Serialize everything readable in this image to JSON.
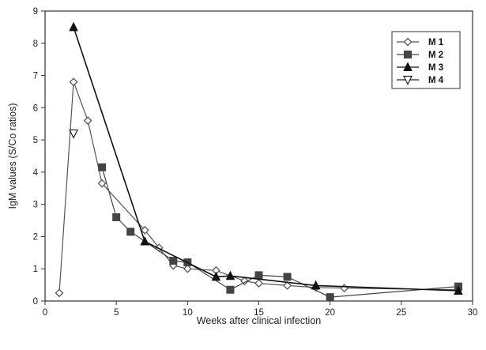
{
  "chart_data": {
    "type": "line",
    "xlabel": "Weeks after clinical infection",
    "ylabel": "IgM values (S/Co ratios)",
    "xlim": [
      0,
      30
    ],
    "ylim": [
      0,
      9
    ],
    "xticks": [
      "0",
      "5",
      "10",
      "15",
      "20",
      "25",
      "30"
    ],
    "yticks": [
      "0",
      "1",
      "2",
      "3",
      "4",
      "5",
      "6",
      "7",
      "8",
      "9"
    ],
    "grid": false,
    "legend_position": "top-right",
    "series": [
      {
        "name": "M 1",
        "marker": "diamond",
        "color": "#555555",
        "points": [
          [
            1,
            0.25
          ],
          [
            2,
            6.8
          ],
          [
            3,
            5.6
          ],
          [
            4,
            3.65
          ],
          [
            7,
            2.2
          ],
          [
            8,
            1.65
          ],
          [
            9,
            1.1
          ],
          [
            10,
            1.0
          ],
          [
            12,
            0.95
          ],
          [
            14,
            0.62
          ],
          [
            15,
            0.55
          ],
          [
            17,
            0.48
          ],
          [
            19,
            0.42
          ],
          [
            21,
            0.4
          ],
          [
            29,
            0.35
          ]
        ]
      },
      {
        "name": "M 2",
        "marker": "square",
        "color": "#444444",
        "points": [
          [
            4,
            4.15
          ],
          [
            5,
            2.6
          ],
          [
            6,
            2.15
          ],
          [
            9,
            1.25
          ],
          [
            10,
            1.2
          ],
          [
            13,
            0.35
          ],
          [
            15,
            0.8
          ],
          [
            17,
            0.75
          ],
          [
            20,
            0.12
          ],
          [
            29,
            0.45
          ]
        ]
      },
      {
        "name": "M 3",
        "marker": "triangle",
        "color": "#111111",
        "points": [
          [
            2,
            8.5
          ],
          [
            7,
            1.85
          ],
          [
            12,
            0.75
          ],
          [
            13,
            0.78
          ],
          [
            19,
            0.48
          ],
          [
            29,
            0.32
          ]
        ]
      },
      {
        "name": "M 4",
        "marker": "triangle-down-open",
        "color": "#222222",
        "points": [
          [
            2,
            5.2
          ]
        ]
      }
    ]
  }
}
